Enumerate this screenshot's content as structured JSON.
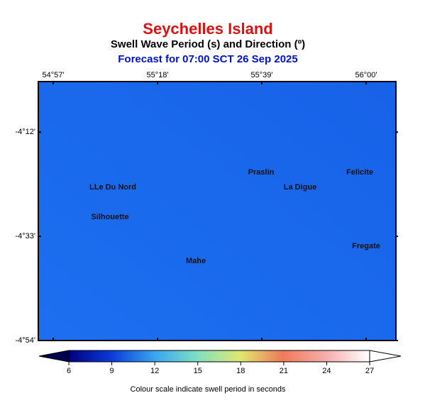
{
  "header": {
    "title": "Seychelles Island",
    "subtitle": "Swell Wave Period (s) and Direction (º)",
    "forecast": "Forecast for  07:00 SCT 26 Sep 2025"
  },
  "map": {
    "xlim": [
      54.9,
      56.1
    ],
    "ylim": [
      -4.9,
      -4.03
    ],
    "xticks": [
      {
        "value": 54.95,
        "label": "54°57'"
      },
      {
        "value": 55.3,
        "label": "55°18'"
      },
      {
        "value": 55.65,
        "label": "55°39'"
      },
      {
        "value": 56.0,
        "label": "56°00'"
      }
    ],
    "yticks": [
      {
        "value": -4.2,
        "label": "-4°12'"
      },
      {
        "value": -4.55,
        "label": "-4°33'"
      },
      {
        "value": -4.9,
        "label": "-4°54'"
      }
    ],
    "places": [
      "Praslin",
      "Felicite",
      "LLe Du Nord",
      "La Digue",
      "Silhouette",
      "Fregate",
      "Mahe"
    ]
  },
  "colorbar": {
    "range": [
      6,
      27
    ],
    "ticks": [
      6,
      9,
      12,
      15,
      18,
      21,
      24,
      27
    ],
    "caption": "Colour scale indicate swell period in seconds"
  }
}
